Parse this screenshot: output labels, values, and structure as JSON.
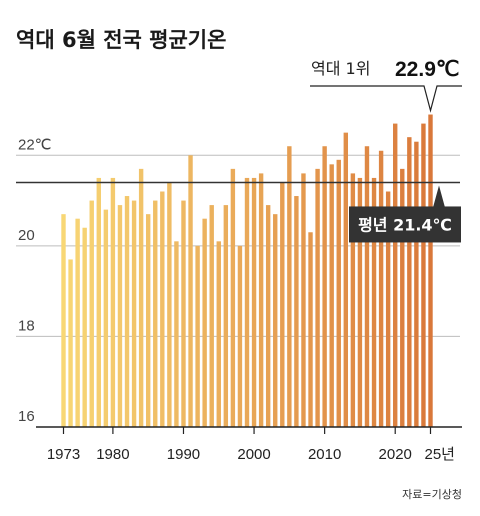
{
  "title": "역대 6월 전국 평균기온",
  "source": "자료=기상청",
  "record": {
    "label": "역대 1위",
    "value": "22.9℃"
  },
  "average": {
    "label": "평년 21.4℃",
    "value": 21.4
  },
  "colors": {
    "bar_start": "#F8D775",
    "bar_end": "#D9783A",
    "average_line": "#333333",
    "average_box": "#333333",
    "grid": "#bdbdbd"
  },
  "chart_data": {
    "type": "bar",
    "title": "역대 6월 전국 평균기온",
    "xlabel": "",
    "ylabel": "",
    "ylim": [
      16,
      23
    ],
    "y_ticks": [
      {
        "value": 16,
        "label": "16"
      },
      {
        "value": 18,
        "label": "18"
      },
      {
        "value": 20,
        "label": "20"
      },
      {
        "value": 22,
        "label": "22℃"
      }
    ],
    "x_ticks": [
      {
        "year": 1973,
        "label": "1973"
      },
      {
        "year": 1980,
        "label": "1980"
      },
      {
        "year": 1990,
        "label": "1990"
      },
      {
        "year": 2000,
        "label": "2000"
      },
      {
        "year": 2010,
        "label": "2010"
      },
      {
        "year": 2020,
        "label": "2020"
      },
      {
        "year": 2025,
        "label": "25년"
      }
    ],
    "x": [
      1973,
      1974,
      1975,
      1976,
      1977,
      1978,
      1979,
      1980,
      1981,
      1982,
      1983,
      1984,
      1985,
      1986,
      1987,
      1988,
      1989,
      1990,
      1991,
      1992,
      1993,
      1994,
      1995,
      1996,
      1997,
      1998,
      1999,
      2000,
      2001,
      2002,
      2003,
      2004,
      2005,
      2006,
      2007,
      2008,
      2009,
      2010,
      2011,
      2012,
      2013,
      2014,
      2015,
      2016,
      2017,
      2018,
      2019,
      2020,
      2021,
      2022,
      2023,
      2024,
      2025
    ],
    "values": [
      20.7,
      19.7,
      20.6,
      20.4,
      21.0,
      21.5,
      20.8,
      21.5,
      20.9,
      21.1,
      21.0,
      21.7,
      20.7,
      21.0,
      21.2,
      21.4,
      20.1,
      21.0,
      22.0,
      20.0,
      20.6,
      20.9,
      20.1,
      20.9,
      21.7,
      20.0,
      21.5,
      21.5,
      21.6,
      20.9,
      20.7,
      21.4,
      22.2,
      21.1,
      21.6,
      20.3,
      21.7,
      22.2,
      21.8,
      21.9,
      22.5,
      21.6,
      21.5,
      22.2,
      21.5,
      22.1,
      21.2,
      22.7,
      21.7,
      22.4,
      22.3,
      22.7,
      22.9
    ],
    "annotations": [
      {
        "text": "역대 1위 22.9℃",
        "year": 2025,
        "value": 22.9
      },
      {
        "text": "평년 21.4℃",
        "value": 21.4
      }
    ],
    "grid": true
  }
}
